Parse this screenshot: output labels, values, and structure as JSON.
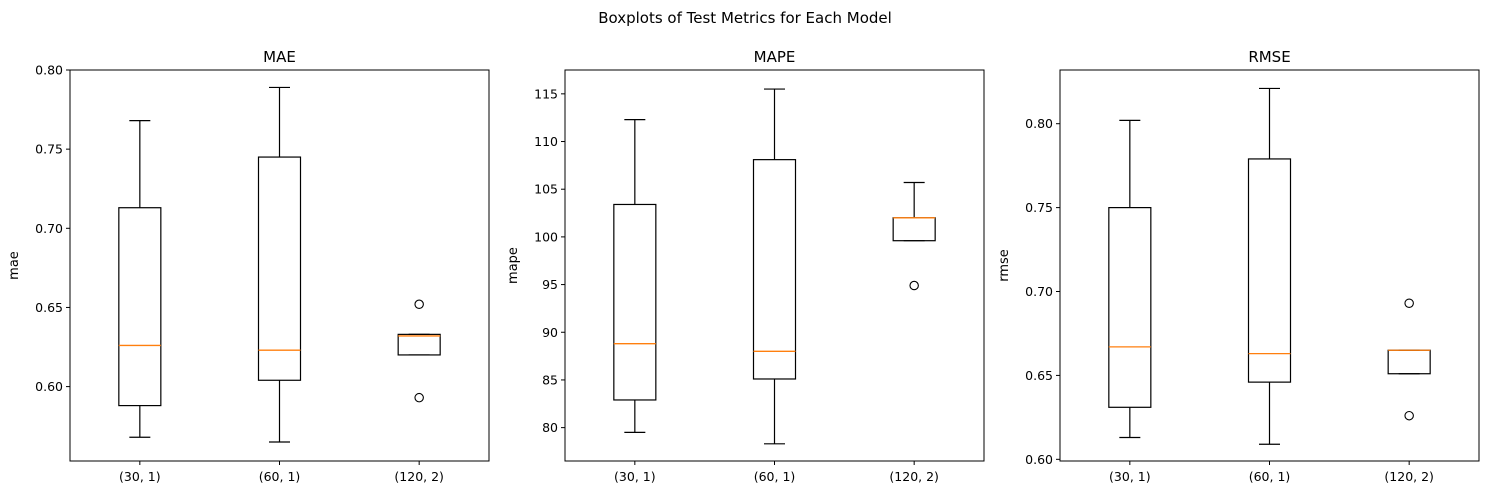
{
  "figure": {
    "suptitle": "Boxplots of Test Metrics for Each Model"
  },
  "style": {
    "box_color": "#000000",
    "median_color": "#ff7f0e",
    "background": "#ffffff"
  },
  "chart_data": [
    {
      "type": "boxplot",
      "title": "MAE",
      "xlabel": "",
      "ylabel": "mae",
      "categories": [
        "(30, 1)",
        "(60, 1)",
        "(120, 2)"
      ],
      "ylim": [
        0.553,
        0.8
      ],
      "yticks": [
        0.6,
        0.65,
        0.7,
        0.75,
        0.8
      ],
      "ytick_labels": [
        "0.60",
        "0.65",
        "0.70",
        "0.75",
        "0.80"
      ],
      "boxes": [
        {
          "whisker_low": 0.568,
          "q1": 0.588,
          "median": 0.626,
          "q3": 0.713,
          "whisker_high": 0.768,
          "outliers": []
        },
        {
          "whisker_low": 0.565,
          "q1": 0.604,
          "median": 0.623,
          "q3": 0.745,
          "whisker_high": 0.789,
          "outliers": []
        },
        {
          "whisker_low": 0.62,
          "q1": 0.62,
          "median": 0.632,
          "q3": 0.633,
          "whisker_high": 0.633,
          "outliers": [
            0.652,
            0.593
          ]
        }
      ]
    },
    {
      "type": "boxplot",
      "title": "MAPE",
      "xlabel": "",
      "ylabel": "mape",
      "categories": [
        "(30, 1)",
        "(60, 1)",
        "(120, 2)"
      ],
      "ylim": [
        76.5,
        117.5
      ],
      "yticks": [
        80,
        85,
        90,
        95,
        100,
        105,
        110,
        115
      ],
      "ytick_labels": [
        "80",
        "85",
        "90",
        "95",
        "100",
        "105",
        "110",
        "115"
      ],
      "boxes": [
        {
          "whisker_low": 79.5,
          "q1": 82.9,
          "median": 88.8,
          "q3": 103.4,
          "whisker_high": 112.3,
          "outliers": []
        },
        {
          "whisker_low": 78.3,
          "q1": 85.1,
          "median": 88.0,
          "q3": 108.1,
          "whisker_high": 115.5,
          "outliers": []
        },
        {
          "whisker_low": 99.6,
          "q1": 99.6,
          "median": 102.0,
          "q3": 102.0,
          "whisker_high": 105.7,
          "outliers": [
            94.9
          ]
        }
      ]
    },
    {
      "type": "boxplot",
      "title": "RMSE",
      "xlabel": "",
      "ylabel": "rmse",
      "categories": [
        "(30, 1)",
        "(60, 1)",
        "(120, 2)"
      ],
      "ylim": [
        0.599,
        0.832
      ],
      "yticks": [
        0.6,
        0.65,
        0.7,
        0.75,
        0.8
      ],
      "ytick_labels": [
        "0.60",
        "0.65",
        "0.70",
        "0.75",
        "0.80"
      ],
      "boxes": [
        {
          "whisker_low": 0.613,
          "q1": 0.631,
          "median": 0.667,
          "q3": 0.75,
          "whisker_high": 0.802,
          "outliers": []
        },
        {
          "whisker_low": 0.609,
          "q1": 0.646,
          "median": 0.663,
          "q3": 0.779,
          "whisker_high": 0.821,
          "outliers": []
        },
        {
          "whisker_low": 0.651,
          "q1": 0.651,
          "median": 0.665,
          "q3": 0.665,
          "whisker_high": 0.665,
          "outliers": [
            0.693,
            0.626
          ]
        }
      ]
    }
  ]
}
